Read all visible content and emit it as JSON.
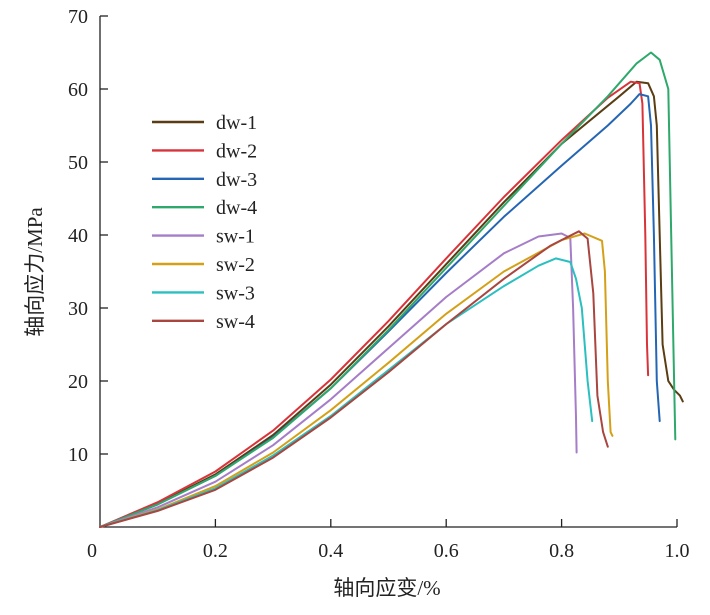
{
  "chart_data": {
    "type": "line",
    "title": "",
    "xlabel": "轴向应变/%",
    "ylabel": "轴向应力/MPa",
    "xlim": [
      0,
      1.0
    ],
    "ylim": [
      0,
      70
    ],
    "x_ticks": [
      0,
      0.2,
      0.4,
      0.6,
      0.8,
      1.0
    ],
    "x_tick_labels": [
      "0",
      "0.2",
      "0.4",
      "0.6",
      "0.8",
      "1.0"
    ],
    "y_ticks": [
      10,
      20,
      30,
      40,
      50,
      60,
      70
    ],
    "y_tick_labels": [
      "10",
      "20",
      "30",
      "40",
      "50",
      "60",
      "70"
    ],
    "grid": false,
    "legend_position": "left",
    "series": [
      {
        "name": "dw-1",
        "color": "#5a3d12",
        "points": [
          [
            0,
            0
          ],
          [
            0.1,
            3.2
          ],
          [
            0.2,
            7.2
          ],
          [
            0.3,
            12.6
          ],
          [
            0.4,
            19.5
          ],
          [
            0.5,
            27.5
          ],
          [
            0.6,
            36
          ],
          [
            0.7,
            44.5
          ],
          [
            0.8,
            52.5
          ],
          [
            0.9,
            59
          ],
          [
            0.93,
            61
          ],
          [
            0.95,
            60.8
          ],
          [
            0.96,
            59
          ],
          [
            0.965,
            55
          ],
          [
            0.97,
            40
          ],
          [
            0.975,
            25
          ],
          [
            0.985,
            20
          ],
          [
            0.995,
            18.8
          ],
          [
            1.005,
            18
          ],
          [
            1.01,
            17.2
          ]
        ]
      },
      {
        "name": "dw-2",
        "color": "#d9333a",
        "points": [
          [
            0,
            0
          ],
          [
            0.1,
            3.4
          ],
          [
            0.2,
            7.6
          ],
          [
            0.3,
            13.2
          ],
          [
            0.4,
            20.2
          ],
          [
            0.5,
            28.2
          ],
          [
            0.6,
            36.8
          ],
          [
            0.7,
            45.2
          ],
          [
            0.8,
            53
          ],
          [
            0.88,
            58.8
          ],
          [
            0.92,
            61
          ],
          [
            0.935,
            60.8
          ],
          [
            0.94,
            58
          ],
          [
            0.945,
            40
          ],
          [
            0.948,
            25
          ],
          [
            0.95,
            20.8
          ]
        ]
      },
      {
        "name": "dw-3",
        "color": "#2566b4",
        "points": [
          [
            0,
            0
          ],
          [
            0.1,
            3.1
          ],
          [
            0.2,
            7
          ],
          [
            0.3,
            12.3
          ],
          [
            0.4,
            19
          ],
          [
            0.5,
            26.8
          ],
          [
            0.6,
            34.8
          ],
          [
            0.7,
            42.5
          ],
          [
            0.8,
            49.5
          ],
          [
            0.88,
            55
          ],
          [
            0.92,
            58
          ],
          [
            0.935,
            59.3
          ],
          [
            0.95,
            59
          ],
          [
            0.955,
            55
          ],
          [
            0.96,
            40
          ],
          [
            0.965,
            20
          ],
          [
            0.97,
            14.5
          ]
        ]
      },
      {
        "name": "dw-4",
        "color": "#2ea86b",
        "points": [
          [
            0,
            0
          ],
          [
            0.1,
            3.1
          ],
          [
            0.2,
            7
          ],
          [
            0.3,
            12.2
          ],
          [
            0.4,
            19
          ],
          [
            0.5,
            27
          ],
          [
            0.6,
            35.5
          ],
          [
            0.7,
            44
          ],
          [
            0.8,
            52.5
          ],
          [
            0.88,
            59
          ],
          [
            0.93,
            63.5
          ],
          [
            0.955,
            65
          ],
          [
            0.97,
            64
          ],
          [
            0.985,
            60
          ],
          [
            0.99,
            40
          ],
          [
            0.995,
            20
          ],
          [
            0.997,
            12
          ]
        ]
      },
      {
        "name": "sw-1",
        "color": "#a57dc8",
        "points": [
          [
            0,
            0
          ],
          [
            0.1,
            2.7
          ],
          [
            0.2,
            6.2
          ],
          [
            0.3,
            11.2
          ],
          [
            0.4,
            17.5
          ],
          [
            0.5,
            24.5
          ],
          [
            0.6,
            31.5
          ],
          [
            0.7,
            37.5
          ],
          [
            0.76,
            39.8
          ],
          [
            0.8,
            40.2
          ],
          [
            0.815,
            39.6
          ],
          [
            0.82,
            30
          ],
          [
            0.825,
            15
          ],
          [
            0.826,
            10.2
          ]
        ]
      },
      {
        "name": "sw-2",
        "color": "#d4a017",
        "points": [
          [
            0,
            0
          ],
          [
            0.1,
            2.4
          ],
          [
            0.2,
            5.6
          ],
          [
            0.3,
            10.2
          ],
          [
            0.4,
            16
          ],
          [
            0.5,
            22.5
          ],
          [
            0.6,
            29.2
          ],
          [
            0.7,
            35
          ],
          [
            0.8,
            39.3
          ],
          [
            0.84,
            40.2
          ],
          [
            0.87,
            39.2
          ],
          [
            0.875,
            35
          ],
          [
            0.88,
            20
          ],
          [
            0.885,
            13
          ],
          [
            0.888,
            12.5
          ]
        ]
      },
      {
        "name": "sw-3",
        "color": "#2bbfbf",
        "points": [
          [
            0,
            0
          ],
          [
            0.1,
            2.3
          ],
          [
            0.2,
            5.3
          ],
          [
            0.3,
            9.8
          ],
          [
            0.4,
            15.2
          ],
          [
            0.5,
            21.5
          ],
          [
            0.6,
            27.8
          ],
          [
            0.7,
            33
          ],
          [
            0.76,
            35.8
          ],
          [
            0.79,
            36.8
          ],
          [
            0.815,
            36.3
          ],
          [
            0.825,
            34
          ],
          [
            0.835,
            30
          ],
          [
            0.845,
            20
          ],
          [
            0.853,
            14.5
          ]
        ]
      },
      {
        "name": "sw-4",
        "color": "#a8463f",
        "points": [
          [
            0,
            0
          ],
          [
            0.1,
            2.2
          ],
          [
            0.2,
            5.1
          ],
          [
            0.3,
            9.5
          ],
          [
            0.4,
            15
          ],
          [
            0.5,
            21.2
          ],
          [
            0.6,
            27.8
          ],
          [
            0.7,
            34
          ],
          [
            0.78,
            38.5
          ],
          [
            0.83,
            40.5
          ],
          [
            0.845,
            39.5
          ],
          [
            0.855,
            32
          ],
          [
            0.862,
            18
          ],
          [
            0.872,
            13
          ],
          [
            0.88,
            11
          ]
        ]
      }
    ]
  }
}
